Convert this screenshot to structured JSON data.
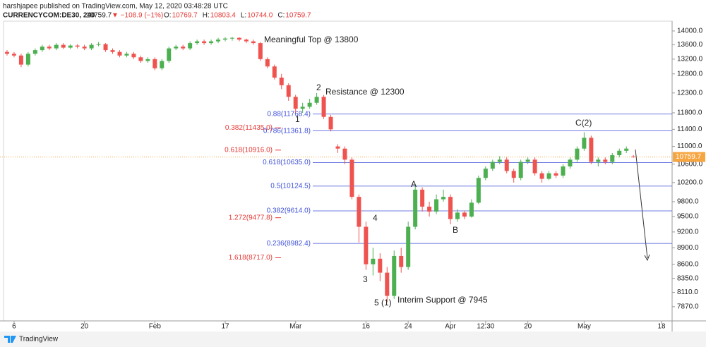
{
  "header": {
    "author_line": "harshjapee published on TradingView.com, May 12, 2020 03:48:28 UTC",
    "symbol": "CURRENCYCOM:DE30, 240",
    "last": "10759.7",
    "change": "▼ −108.9 (−1%)",
    "ohlc": [
      {
        "key": "O:",
        "text": "10769.7"
      },
      {
        "key": "H:",
        "text": "10803.4"
      },
      {
        "key": "L:",
        "text": "10744.0"
      },
      {
        "key": "C:",
        "text": "10759.7"
      }
    ]
  },
  "footer": {
    "brand": "TradingView"
  },
  "chart_data": {
    "type": "candlestick",
    "log": true,
    "up_color": "#4caf50",
    "down_color": "#ef5350",
    "categories": [
      null,
      "6",
      null,
      null,
      null,
      null,
      null,
      null,
      null,
      null,
      null,
      "20",
      null,
      null,
      null,
      null,
      null,
      null,
      null,
      null,
      null,
      "Feb",
      null,
      null,
      null,
      null,
      null,
      null,
      null,
      null,
      null,
      "17",
      null,
      null,
      null,
      null,
      null,
      null,
      null,
      null,
      null,
      "Mar",
      null,
      null,
      null,
      null,
      null,
      null,
      null,
      null,
      null,
      "16",
      null,
      null,
      null,
      null,
      null,
      "24",
      null,
      null,
      null,
      null,
      null,
      "Apr",
      null,
      null,
      null,
      null,
      "12:30",
      null,
      null,
      null,
      null,
      null,
      "20",
      null,
      null,
      null,
      null,
      null,
      null,
      null,
      "May",
      null,
      null,
      null,
      null,
      null,
      null,
      null,
      null,
      null,
      null,
      "18",
      null
    ],
    "open": [
      13400,
      13350,
      13300,
      13050,
      13350,
      13450,
      13550,
      13500,
      13600,
      13520,
      13580,
      13550,
      13500,
      13600,
      13620,
      13450,
      13400,
      13300,
      13350,
      13250,
      13150,
      13200,
      12950,
      13150,
      13500,
      13550,
      13500,
      13650,
      13700,
      13650,
      13700,
      13750,
      13780,
      13800,
      13750,
      13700,
      13650,
      13200,
      13000,
      12700,
      12500,
      12200,
      11900,
      11950,
      12050,
      12200,
      11700,
      11000,
      10950,
      10700,
      9900,
      9300,
      8600,
      8700,
      8450,
      8050,
      8750,
      8550,
      9300,
      10050,
      9700,
      9600,
      9850,
      9900,
      9450,
      9580,
      9500,
      9780,
      10300,
      10500,
      10650,
      10700,
      10450,
      10300,
      10650,
      10700,
      10400,
      10280,
      10400,
      10350,
      10550,
      10700,
      10950,
      11200,
      10650,
      10700,
      10650,
      10800,
      10900,
      10769.7,
      null,
      null,
      null,
      null,
      null
    ],
    "high": [
      13450,
      13400,
      13350,
      13400,
      13500,
      13600,
      13600,
      13650,
      13650,
      13620,
      13620,
      13600,
      13650,
      13680,
      13650,
      13500,
      13450,
      13400,
      13400,
      13300,
      13250,
      13250,
      13200,
      13550,
      13600,
      13600,
      13700,
      13750,
      13750,
      13750,
      13800,
      13820,
      13830,
      13820,
      13780,
      13750,
      13680,
      13250,
      13050,
      12800,
      12550,
      12250,
      12050,
      12150,
      12300,
      12250,
      11750,
      11050,
      11000,
      10750,
      9950,
      9400,
      8900,
      8800,
      8550,
      8850,
      8900,
      9400,
      10150,
      10100,
      9800,
      9950,
      10050,
      9950,
      9650,
      9620,
      9850,
      10350,
      10550,
      10700,
      10780,
      10750,
      10500,
      10700,
      10750,
      10750,
      10450,
      10450,
      10450,
      10600,
      10750,
      11000,
      11330,
      11250,
      10750,
      10750,
      10850,
      10950,
      11000,
      10803.4,
      null,
      null,
      null,
      null,
      null
    ],
    "low": [
      13300,
      13250,
      12980,
      13000,
      13300,
      13400,
      13450,
      13450,
      13480,
      13480,
      13500,
      13450,
      13450,
      13560,
      13400,
      13350,
      13250,
      13250,
      13200,
      13100,
      13100,
      12900,
      12900,
      13100,
      13450,
      13450,
      13450,
      13600,
      13600,
      13600,
      13650,
      13700,
      13720,
      13700,
      13650,
      13600,
      13150,
      12950,
      12650,
      12400,
      12100,
      11800,
      11800,
      11900,
      12000,
      11650,
      11350,
      10850,
      10600,
      9850,
      9000,
      8500,
      8400,
      8300,
      7945,
      8000,
      8450,
      8500,
      9250,
      9600,
      9500,
      9550,
      9800,
      9350,
      9400,
      9450,
      9480,
      9750,
      10250,
      10450,
      10600,
      10400,
      10200,
      10250,
      10600,
      10350,
      10200,
      10250,
      10300,
      10300,
      10500,
      10650,
      10900,
      10600,
      10550,
      10600,
      10600,
      10750,
      10850,
      10744,
      null,
      null,
      null,
      null,
      null
    ],
    "close": [
      13350,
      13300,
      13050,
      13350,
      13450,
      13550,
      13500,
      13600,
      13520,
      13580,
      13550,
      13500,
      13600,
      13620,
      13450,
      13400,
      13300,
      13350,
      13250,
      13150,
      13200,
      12950,
      13150,
      13500,
      13550,
      13500,
      13650,
      13700,
      13650,
      13700,
      13750,
      13780,
      13800,
      13750,
      13700,
      13650,
      13200,
      13000,
      12700,
      12500,
      12200,
      11900,
      11950,
      12050,
      12200,
      11700,
      11400,
      10950,
      10700,
      9900,
      9300,
      8600,
      8700,
      8450,
      8050,
      8750,
      8550,
      9300,
      10050,
      9700,
      9600,
      9850,
      9900,
      9450,
      9580,
      9500,
      9780,
      10300,
      10500,
      10650,
      10700,
      10450,
      10300,
      10650,
      10700,
      10400,
      10280,
      10400,
      10350,
      10550,
      10700,
      10950,
      11200,
      10650,
      10700,
      10650,
      10800,
      10900,
      10950,
      10759.7,
      null,
      null,
      null,
      null,
      null
    ],
    "ylim": [
      7640,
      14290
    ],
    "yticks": [
      {
        "value": 14000,
        "label": "14000.0"
      },
      {
        "value": 13600,
        "label": "13600.0"
      },
      {
        "value": 13200,
        "label": "13200.0"
      },
      {
        "value": 12800,
        "label": "12800.0"
      },
      {
        "value": 12300,
        "label": "12300.0"
      },
      {
        "value": 11800,
        "label": "11800.0"
      },
      {
        "value": 11400,
        "label": "11400.0"
      },
      {
        "value": 11000,
        "label": "11000.0"
      },
      {
        "value": 10600,
        "label": "10600.0"
      },
      {
        "value": 10200,
        "label": "10200.0"
      },
      {
        "value": 9800,
        "label": "9800.0"
      },
      {
        "value": 9500,
        "label": "9500.0"
      },
      {
        "value": 9200,
        "label": "9200.0"
      },
      {
        "value": 8900,
        "label": "8900.0"
      },
      {
        "value": 8600,
        "label": "8600.0"
      },
      {
        "value": 8350,
        "label": "8350.0"
      },
      {
        "value": 8110,
        "label": "8110.0"
      },
      {
        "value": 7870,
        "label": "7870.0"
      }
    ],
    "last_price": 10759.7,
    "last_price_color": "#f7a541",
    "retracements": [
      {
        "label": "0.88(11768.4)",
        "value": 11768.4
      },
      {
        "label": "0.786(11361.8)",
        "value": 11361.8
      },
      {
        "label": "0.618(10635.0)",
        "value": 10635.0
      },
      {
        "label": "0.5(10124.5)",
        "value": 10124.5
      },
      {
        "label": "0.382(9614.0)",
        "value": 9614.0
      },
      {
        "label": "0.236(8982.4)",
        "value": 8982.4
      }
    ],
    "retracement_color": "#3f51d8",
    "projections": [
      {
        "label": "0.382(11435.0)",
        "value": 11435.0
      },
      {
        "label": "0.618(10916.0)",
        "value": 10916.0
      },
      {
        "label": "1.272(9477.8)",
        "value": 9477.8
      },
      {
        "label": "1.618(8717.0)",
        "value": 8717.0
      }
    ],
    "projection_color": "#e53935",
    "annotations": [
      "Meaningful Top @ 13800",
      "Resistance @ 12300",
      "Interim Support @ 7945",
      "1",
      "2",
      "3",
      "4",
      "5 (1)",
      "A",
      "B",
      "C(2)"
    ]
  }
}
